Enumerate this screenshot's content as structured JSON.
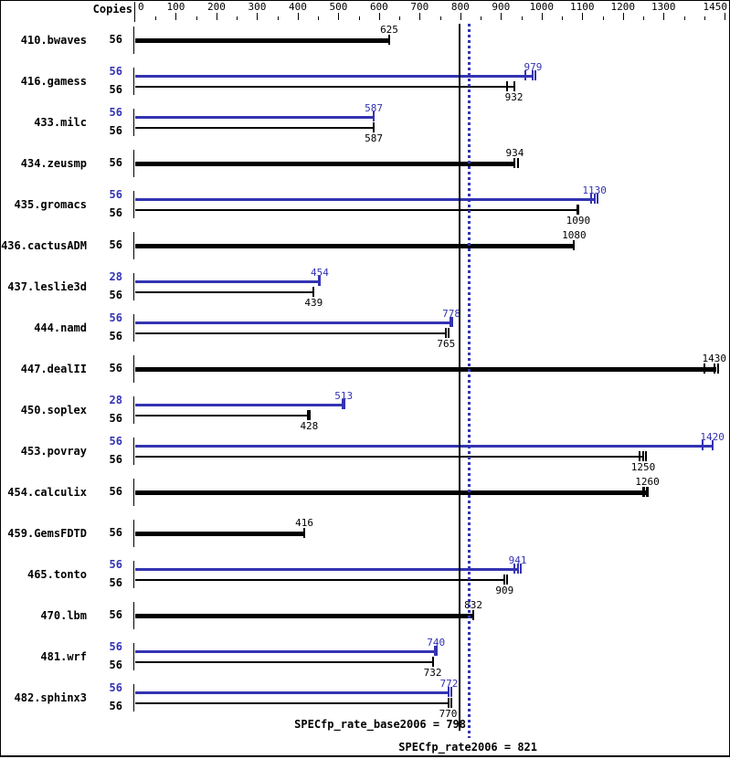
{
  "chart_data": {
    "type": "bar",
    "orientation": "horizontal",
    "title": "",
    "copies_header": "Copies",
    "xlim": [
      0,
      1450
    ],
    "x_tick_labels": [
      0,
      100,
      200,
      300,
      400,
      500,
      600,
      700,
      800,
      900,
      1000,
      1100,
      1200,
      1300,
      1450
    ],
    "x_minor_tick_step": 50,
    "grid": false,
    "colors": {
      "peak": "#3333b3",
      "base": "#000000"
    },
    "rows": [
      {
        "label": "410.bwaves",
        "bars": [
          {
            "kind": "basepeak",
            "copies": 56,
            "value": 625,
            "marks": [
              [
                0,
                2
              ]
            ]
          }
        ]
      },
      {
        "label": "416.gamess",
        "bars": [
          {
            "kind": "peak",
            "copies": 56,
            "value": 979,
            "marks": [
              [
                -8,
                2
              ],
              [
                0,
                2
              ],
              [
                3,
                2
              ]
            ]
          },
          {
            "kind": "base",
            "copies": 56,
            "value": 932,
            "marks": [
              [
                -8,
                2
              ],
              [
                0,
                2
              ]
            ]
          }
        ]
      },
      {
        "label": "433.milc",
        "bars": [
          {
            "kind": "peak",
            "copies": 56,
            "value": 587,
            "marks": [
              [
                0,
                2
              ]
            ]
          },
          {
            "kind": "base",
            "copies": 56,
            "value": 587,
            "marks": [
              [
                0,
                2
              ]
            ]
          }
        ]
      },
      {
        "label": "434.zeusmp",
        "bars": [
          {
            "kind": "basepeak",
            "copies": 56,
            "value": 934,
            "marks": [
              [
                0,
                2
              ],
              [
                4,
                2
              ]
            ]
          }
        ]
      },
      {
        "label": "435.gromacs",
        "bars": [
          {
            "kind": "peak",
            "copies": 56,
            "value": 1130,
            "marks": [
              [
                -4,
                2
              ],
              [
                0,
                2
              ],
              [
                3,
                2
              ]
            ]
          },
          {
            "kind": "base",
            "copies": 56,
            "value": 1090,
            "marks": [
              [
                0,
                3
              ]
            ]
          }
        ]
      },
      {
        "label": "436.cactusADM",
        "bars": [
          {
            "kind": "basepeak",
            "copies": 56,
            "value": 1080,
            "marks": [
              [
                0,
                2
              ]
            ]
          }
        ]
      },
      {
        "label": "437.leslie3d",
        "bars": [
          {
            "kind": "peak",
            "copies": 28,
            "value": 454,
            "marks": [
              [
                0,
                3
              ]
            ]
          },
          {
            "kind": "base",
            "copies": 56,
            "value": 439,
            "marks": [
              [
                0,
                2
              ]
            ]
          }
        ]
      },
      {
        "label": "444.namd",
        "bars": [
          {
            "kind": "peak",
            "copies": 56,
            "value": 778,
            "marks": [
              [
                0,
                4
              ]
            ]
          },
          {
            "kind": "base",
            "copies": 56,
            "value": 765,
            "marks": [
              [
                0,
                2
              ],
              [
                3,
                2
              ]
            ]
          }
        ]
      },
      {
        "label": "447.dealII",
        "bars": [
          {
            "kind": "basepeak",
            "copies": 56,
            "value": 1430,
            "marks": [
              [
                -13,
                2
              ],
              [
                -2,
                2
              ],
              [
                2,
                2
              ]
            ]
          }
        ]
      },
      {
        "label": "450.soplex",
        "bars": [
          {
            "kind": "peak",
            "copies": 28,
            "value": 513,
            "marks": [
              [
                0,
                4
              ]
            ]
          },
          {
            "kind": "base",
            "copies": 56,
            "value": 428,
            "marks": [
              [
                0,
                4
              ]
            ]
          }
        ]
      },
      {
        "label": "453.povray",
        "bars": [
          {
            "kind": "peak",
            "copies": 56,
            "value": 1420,
            "marks": [
              [
                -11,
                2
              ],
              [
                0,
                2
              ]
            ]
          },
          {
            "kind": "base",
            "copies": 56,
            "value": 1250,
            "marks": [
              [
                -4,
                2
              ],
              [
                0,
                2
              ],
              [
                3,
                2
              ]
            ]
          }
        ]
      },
      {
        "label": "454.calculix",
        "bars": [
          {
            "kind": "basepeak",
            "copies": 56,
            "value": 1260,
            "marks": [
              [
                -4,
                3
              ],
              [
                0,
                3
              ]
            ]
          }
        ]
      },
      {
        "label": "459.GemsFDTD",
        "bars": [
          {
            "kind": "basepeak",
            "copies": 56,
            "value": 416,
            "marks": [
              [
                0,
                2
              ]
            ]
          }
        ]
      },
      {
        "label": "465.tonto",
        "bars": [
          {
            "kind": "peak",
            "copies": 56,
            "value": 941,
            "marks": [
              [
                -4,
                2
              ],
              [
                0,
                2
              ],
              [
                3,
                2
              ]
            ]
          },
          {
            "kind": "base",
            "copies": 56,
            "value": 909,
            "marks": [
              [
                0,
                2
              ],
              [
                3,
                2
              ]
            ]
          }
        ]
      },
      {
        "label": "470.lbm",
        "bars": [
          {
            "kind": "basepeak",
            "copies": 56,
            "value": 832,
            "marks": [
              [
                0,
                2
              ]
            ]
          }
        ]
      },
      {
        "label": "481.wrf",
        "bars": [
          {
            "kind": "peak",
            "copies": 56,
            "value": 740,
            "marks": [
              [
                0,
                4
              ]
            ]
          },
          {
            "kind": "base",
            "copies": 56,
            "value": 732,
            "marks": [
              [
                0,
                2
              ]
            ]
          }
        ]
      },
      {
        "label": "482.sphinx3",
        "bars": [
          {
            "kind": "peak",
            "copies": 56,
            "value": 772,
            "marks": [
              [
                0,
                2
              ],
              [
                3,
                2
              ]
            ]
          },
          {
            "kind": "base",
            "copies": 56,
            "value": 770,
            "marks": [
              [
                0,
                2
              ],
              [
                3,
                2
              ]
            ]
          }
        ]
      }
    ],
    "base_line": {
      "value": 798,
      "label": "SPECfp_rate_base2006 = 798"
    },
    "peak_line": {
      "value": 821,
      "label": "SPECfp_rate2006 = 821"
    }
  }
}
